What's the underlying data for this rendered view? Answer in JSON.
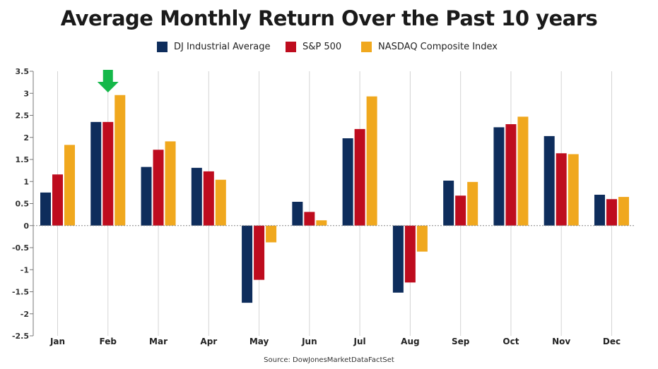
{
  "chart_data": {
    "type": "bar",
    "title": "Average Monthly Return Over the Past 10 years",
    "categories": [
      "Jan",
      "Feb",
      "Mar",
      "Apr",
      "May",
      "Jun",
      "Jul",
      "Aug",
      "Sep",
      "Oct",
      "Nov",
      "Dec"
    ],
    "series": [
      {
        "name": "DJ Industrial Average",
        "color": "#0e2d5c",
        "values": [
          0.75,
          2.35,
          1.33,
          1.31,
          -1.75,
          0.54,
          1.98,
          -1.52,
          1.02,
          2.23,
          2.03,
          0.7
        ]
      },
      {
        "name": "S&P 500",
        "color": "#be0c1e",
        "values": [
          1.16,
          2.35,
          1.72,
          1.23,
          -1.23,
          0.31,
          2.19,
          -1.29,
          0.68,
          2.3,
          1.64,
          0.6
        ]
      },
      {
        "name": "NASDAQ Composite Index",
        "color": "#f0a81e",
        "values": [
          1.83,
          2.96,
          1.91,
          1.04,
          -0.38,
          0.12,
          2.93,
          -0.59,
          0.99,
          2.47,
          1.62,
          0.65
        ]
      }
    ],
    "yticks": [
      "3.5",
      "3",
      "2.5",
      "2",
      "1.5",
      "1",
      "0.5",
      "0",
      "-0.5",
      "-1",
      "-1.5",
      "-2",
      "-2.5"
    ],
    "ylim": [
      -2.5,
      3.5
    ],
    "xlabel": "",
    "ylabel": "",
    "grid": "vertical",
    "legend": "top-center",
    "annotation": {
      "type": "arrow",
      "target": "Feb",
      "icon": "down-arrow-icon",
      "color": "#15b84a"
    },
    "source": "Source: DowJonesMarketDataFactSet"
  }
}
